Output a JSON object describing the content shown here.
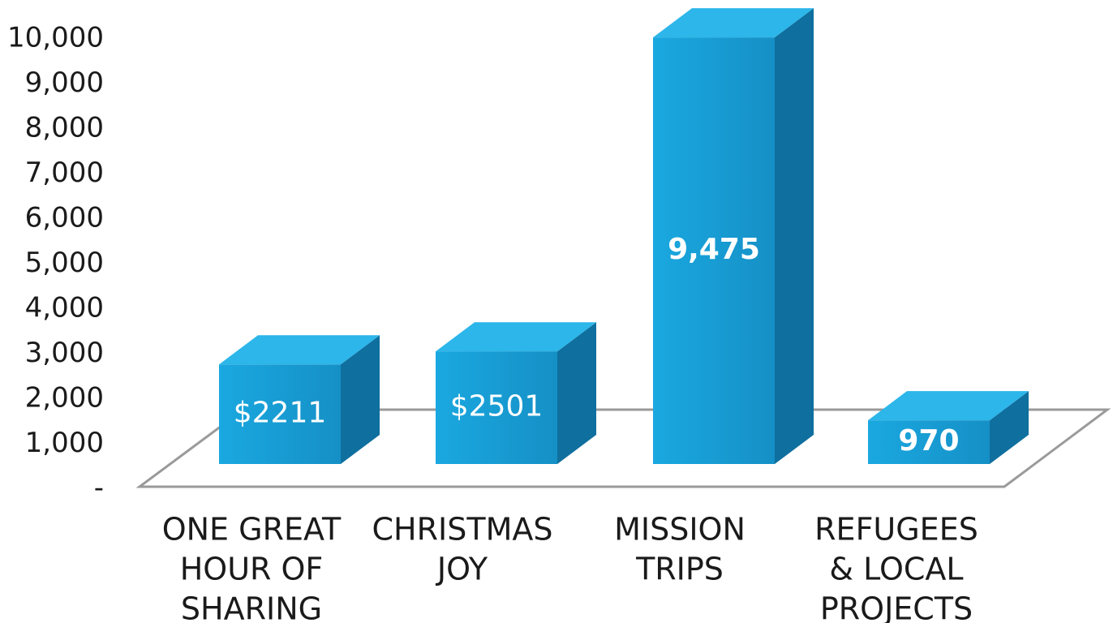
{
  "chart_data": {
    "type": "bar3d",
    "categories": [
      [
        "ONE GREAT",
        "HOUR OF",
        "SHARING"
      ],
      [
        "CHRISTMAS",
        "JOY"
      ],
      [
        "MISSION",
        "TRIPS"
      ],
      [
        "REFUGEES",
        "& LOCAL",
        "PROJECTS"
      ]
    ],
    "values": [
      2211,
      2501,
      9475,
      970
    ],
    "value_labels": [
      "$2211",
      "$2501",
      "9,475",
      "970"
    ],
    "color": "#1ba6dd",
    "ylim": [
      0,
      10000
    ],
    "yticks": [
      {
        "value": 0,
        "label": "-"
      },
      {
        "value": 1000,
        "label": "1,000"
      },
      {
        "value": 2000,
        "label": "2,000"
      },
      {
        "value": 3000,
        "label": "3,000"
      },
      {
        "value": 4000,
        "label": "4,000"
      },
      {
        "value": 5000,
        "label": "5,000"
      },
      {
        "value": 6000,
        "label": "6,000"
      },
      {
        "value": 7000,
        "label": "7,000"
      },
      {
        "value": 8000,
        "label": "8,000"
      },
      {
        "value": 9000,
        "label": "9,000"
      },
      {
        "value": 10000,
        "label": "10,000"
      }
    ]
  }
}
